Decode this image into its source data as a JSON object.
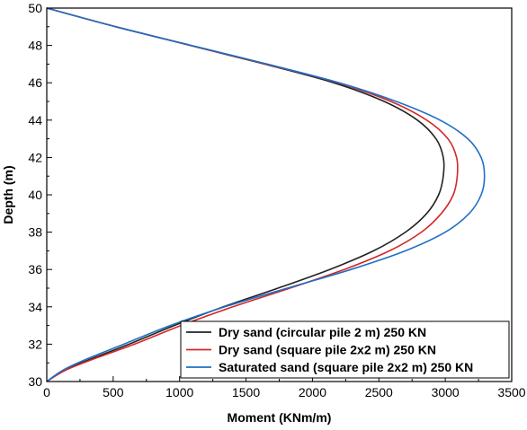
{
  "chart_data": {
    "type": "line",
    "title": "",
    "xlabel": "Moment (KNm/m)",
    "ylabel": "Depth (m)",
    "xlim": [
      0,
      3500
    ],
    "ylim": [
      30,
      50
    ],
    "x_ticks": [
      0,
      500,
      1000,
      1500,
      2000,
      2500,
      3000,
      3500
    ],
    "y_ticks": [
      30,
      32,
      34,
      36,
      38,
      40,
      42,
      44,
      46,
      48,
      50
    ],
    "grid": false,
    "legend_position": "bottom-right",
    "series": [
      {
        "name": "Dry sand (circular pile 2 m) 250 KN",
        "color": "#222222",
        "points": [
          {
            "x": 0,
            "y": 30.0
          },
          {
            "x": 130,
            "y": 30.6
          },
          {
            "x": 330,
            "y": 31.2
          },
          {
            "x": 620,
            "y": 32.0
          },
          {
            "x": 960,
            "y": 33.0
          },
          {
            "x": 1330,
            "y": 34.0
          },
          {
            "x": 1740,
            "y": 35.0
          },
          {
            "x": 2130,
            "y": 36.0
          },
          {
            "x": 2460,
            "y": 37.0
          },
          {
            "x": 2700,
            "y": 38.0
          },
          {
            "x": 2860,
            "y": 39.0
          },
          {
            "x": 2950,
            "y": 40.0
          },
          {
            "x": 2985,
            "y": 41.0
          },
          {
            "x": 2985,
            "y": 42.0
          },
          {
            "x": 2930,
            "y": 43.0
          },
          {
            "x": 2790,
            "y": 44.0
          },
          {
            "x": 2540,
            "y": 45.0
          },
          {
            "x": 2160,
            "y": 46.0
          },
          {
            "x": 1640,
            "y": 47.0
          },
          {
            "x": 1080,
            "y": 48.0
          },
          {
            "x": 520,
            "y": 49.0
          },
          {
            "x": 0,
            "y": 50.0
          }
        ]
      },
      {
        "name": "Dry sand (square pile 2x2 m) 250 KN",
        "color": "#d62728",
        "points": [
          {
            "x": 0,
            "y": 30.0
          },
          {
            "x": 140,
            "y": 30.6
          },
          {
            "x": 350,
            "y": 31.2
          },
          {
            "x": 660,
            "y": 32.0
          },
          {
            "x": 1010,
            "y": 33.0
          },
          {
            "x": 1400,
            "y": 34.0
          },
          {
            "x": 1830,
            "y": 35.0
          },
          {
            "x": 2240,
            "y": 36.0
          },
          {
            "x": 2580,
            "y": 37.0
          },
          {
            "x": 2820,
            "y": 38.0
          },
          {
            "x": 2970,
            "y": 39.0
          },
          {
            "x": 3060,
            "y": 40.0
          },
          {
            "x": 3090,
            "y": 41.0
          },
          {
            "x": 3085,
            "y": 42.0
          },
          {
            "x": 3020,
            "y": 43.0
          },
          {
            "x": 2860,
            "y": 44.0
          },
          {
            "x": 2590,
            "y": 45.0
          },
          {
            "x": 2190,
            "y": 46.0
          },
          {
            "x": 1650,
            "y": 47.0
          },
          {
            "x": 1085,
            "y": 48.0
          },
          {
            "x": 520,
            "y": 49.0
          },
          {
            "x": 0,
            "y": 50.0
          }
        ]
      },
      {
        "name": "Saturated sand (square pile 2x2 m) 250 KN",
        "color": "#1f6fc5",
        "points": [
          {
            "x": 0,
            "y": 30.0
          },
          {
            "x": 120,
            "y": 30.6
          },
          {
            "x": 300,
            "y": 31.2
          },
          {
            "x": 580,
            "y": 32.0
          },
          {
            "x": 930,
            "y": 33.0
          },
          {
            "x": 1340,
            "y": 34.0
          },
          {
            "x": 1810,
            "y": 35.0
          },
          {
            "x": 2290,
            "y": 36.0
          },
          {
            "x": 2700,
            "y": 37.0
          },
          {
            "x": 3000,
            "y": 38.0
          },
          {
            "x": 3180,
            "y": 39.0
          },
          {
            "x": 3270,
            "y": 40.0
          },
          {
            "x": 3295,
            "y": 41.0
          },
          {
            "x": 3270,
            "y": 42.0
          },
          {
            "x": 3170,
            "y": 43.0
          },
          {
            "x": 2960,
            "y": 44.0
          },
          {
            "x": 2630,
            "y": 45.0
          },
          {
            "x": 2200,
            "y": 46.0
          },
          {
            "x": 1660,
            "y": 47.0
          },
          {
            "x": 1090,
            "y": 48.0
          },
          {
            "x": 520,
            "y": 49.0
          },
          {
            "x": 0,
            "y": 50.0
          }
        ]
      }
    ]
  }
}
